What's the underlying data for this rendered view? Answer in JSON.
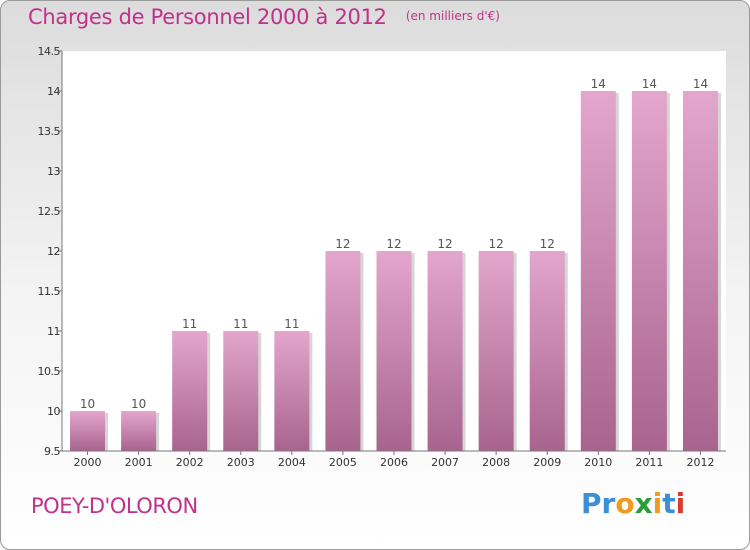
{
  "header": {
    "title": "Charges de Personnel 2000 à 2012",
    "unit": "(en milliers d'€)"
  },
  "footer": {
    "commune": "POEY-D'OLORON",
    "logo": {
      "text": "Proxiti",
      "letters": [
        "P",
        "r",
        "o",
        "x",
        "i",
        "t",
        "i"
      ],
      "colors": [
        "#3a8fd6",
        "#3a8fd6",
        "#f29a1e",
        "#2a9d3a",
        "#f29a1e",
        "#3a8fd6",
        "#d93c2f"
      ]
    }
  },
  "colors": {
    "accent": "#c0318a",
    "bar_top": "#e3a6cc",
    "bar_bottom": "#a8648e"
  },
  "chart_data": {
    "type": "bar",
    "title": "Charges de Personnel 2000 à 2012",
    "subtitle": "(en milliers d'€)",
    "categories": [
      "2000",
      "2001",
      "2002",
      "2003",
      "2004",
      "2005",
      "2006",
      "2007",
      "2008",
      "2009",
      "2010",
      "2011",
      "2012"
    ],
    "values": [
      10,
      10,
      11,
      11,
      11,
      12,
      12,
      12,
      12,
      12,
      14,
      14,
      14
    ],
    "data_labels": [
      "10",
      "10",
      "11",
      "11",
      "11",
      "12",
      "12",
      "12",
      "12",
      "12",
      "14",
      "14",
      "14"
    ],
    "ylim": [
      9.5,
      14.5
    ],
    "yticks": [
      "9.5",
      "10",
      "10.5",
      "11",
      "11.5",
      "12",
      "12.5",
      "13",
      "13.5",
      "14",
      "14.5"
    ],
    "xlabel": "",
    "ylabel": "",
    "grid": false,
    "legend": "none"
  }
}
